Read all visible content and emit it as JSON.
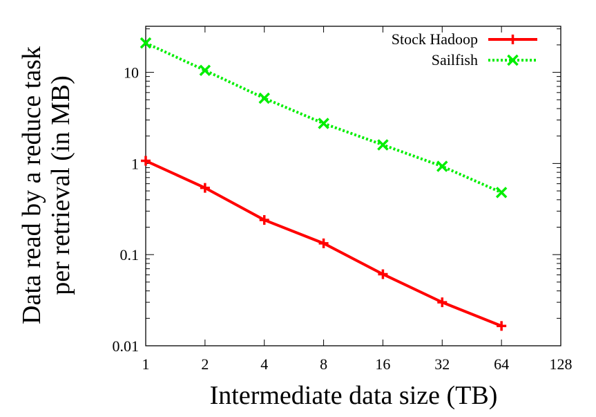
{
  "chart_data": {
    "type": "line",
    "xscale": "log2",
    "yscale": "log10",
    "xlabel": "Intermediate data size (TB)",
    "ylabel_lines": [
      "Data read by a reduce task",
      "per retrieval (in MB)"
    ],
    "x_ticks": [
      1,
      2,
      4,
      8,
      16,
      32,
      64,
      128
    ],
    "x_tick_labels": [
      "1",
      "2",
      "4",
      "8",
      "16",
      "32",
      "64",
      "128"
    ],
    "y_ticks": [
      0.01,
      0.1,
      1,
      10
    ],
    "y_tick_labels": [
      "0.01",
      "0.1",
      "1",
      "10"
    ],
    "xlim": [
      1,
      128
    ],
    "ylim": [
      0.01,
      32
    ],
    "legend_position": "top-right",
    "series": [
      {
        "name": "Stock Hadoop",
        "color": "#ff0000",
        "line": "solid",
        "marker": "plus",
        "x": [
          1,
          2,
          4,
          8,
          16,
          32,
          64
        ],
        "y": [
          1.07,
          0.54,
          0.24,
          0.133,
          0.061,
          0.03,
          0.0165
        ]
      },
      {
        "name": "Sailfish",
        "color": "#00ee00",
        "line": "dotted",
        "marker": "x",
        "x": [
          1,
          2,
          4,
          8,
          16,
          32,
          64
        ],
        "y": [
          21,
          10.5,
          5.2,
          2.75,
          1.6,
          0.93,
          0.48
        ]
      }
    ]
  }
}
